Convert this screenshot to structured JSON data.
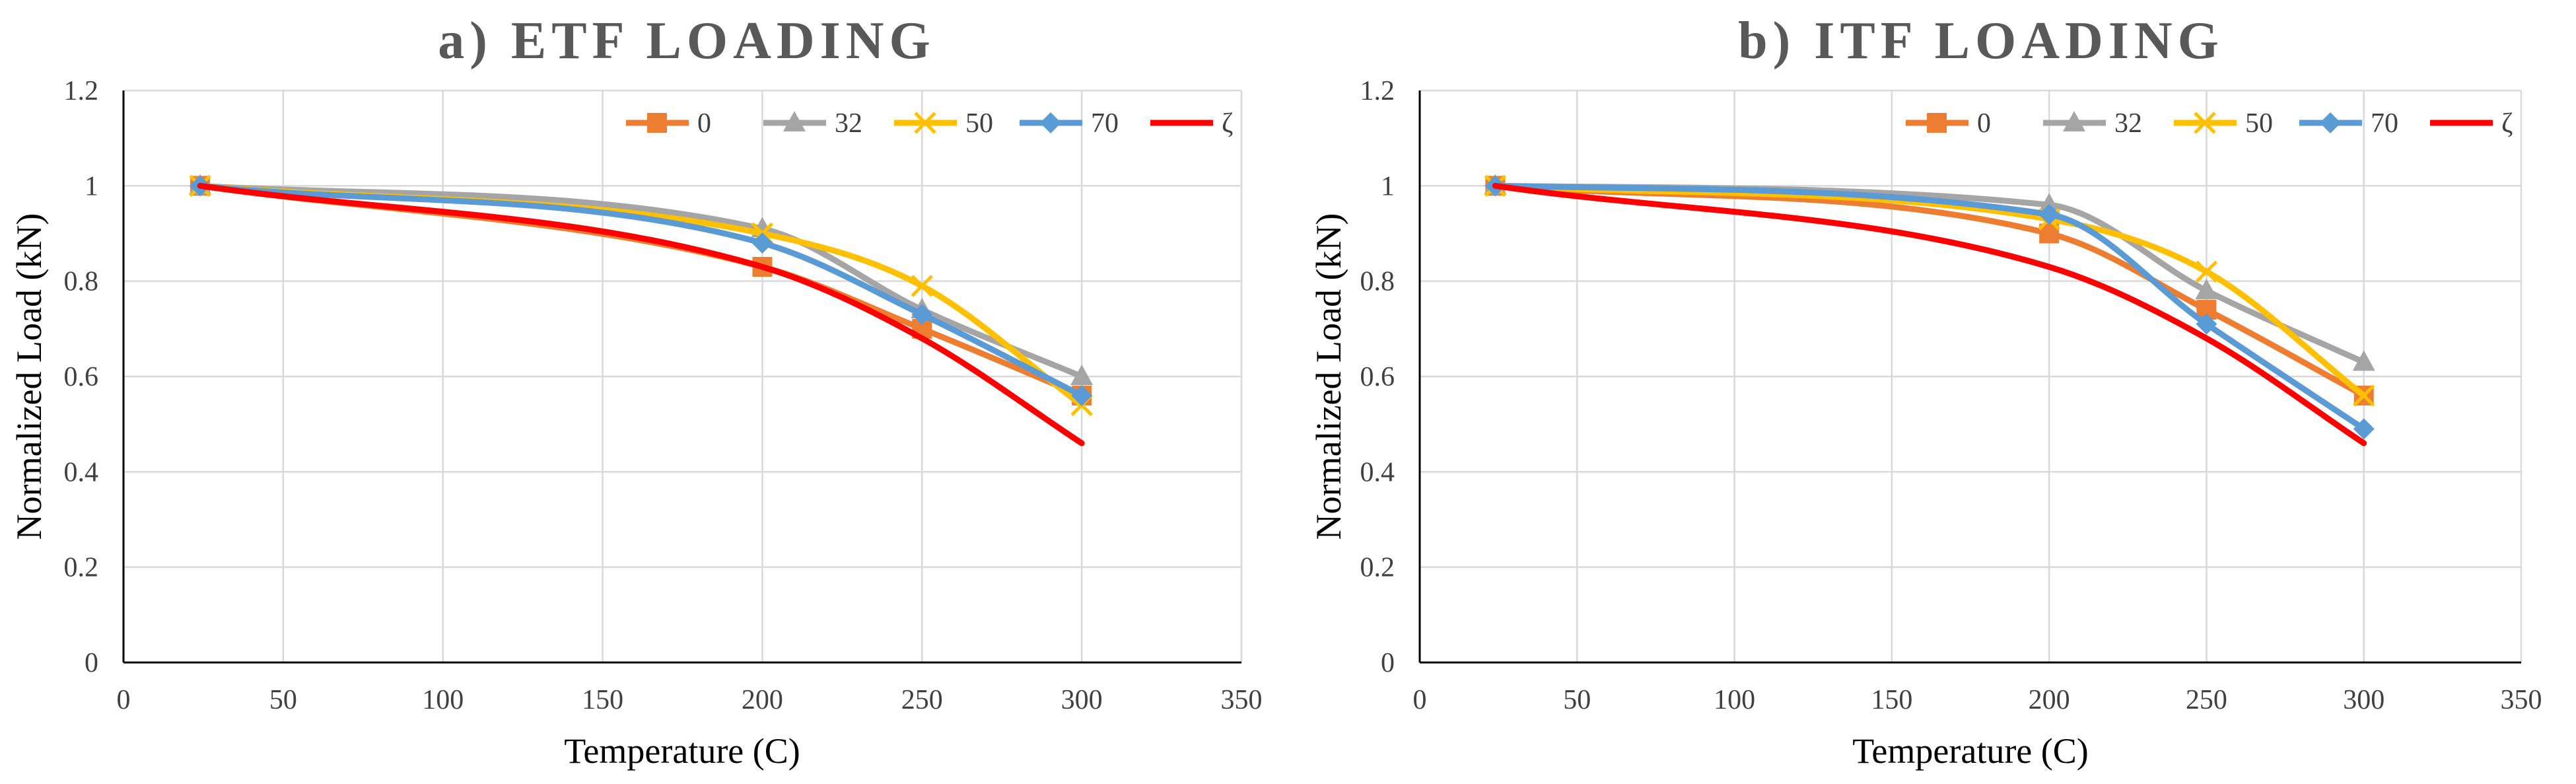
{
  "chart_data": [
    {
      "type": "line",
      "title": "a) ETF LOADING",
      "xlabel": "Temperature (C)",
      "ylabel": "Normalized Load (kN)",
      "xlim": [
        0,
        350
      ],
      "ylim": [
        0,
        1.2
      ],
      "x_ticks": [
        "0",
        "50",
        "100",
        "150",
        "200",
        "250",
        "300",
        "350"
      ],
      "y_ticks": [
        "0",
        "0.2",
        "0.4",
        "0.6",
        "0.8",
        "1",
        "1.2"
      ],
      "grid": true,
      "legend_position": "top-right",
      "x": [
        24,
        200,
        250,
        300
      ],
      "series": [
        {
          "name": "0",
          "color": "#ED7D31",
          "marker": "square",
          "values": [
            1.0,
            0.83,
            0.7,
            0.56
          ]
        },
        {
          "name": "32",
          "color": "#A5A5A5",
          "marker": "triangle",
          "values": [
            1.0,
            0.91,
            0.74,
            0.6
          ]
        },
        {
          "name": "50",
          "color": "#FFC000",
          "marker": "x",
          "values": [
            1.0,
            0.9,
            0.79,
            0.54
          ]
        },
        {
          "name": "70",
          "color": "#5B9BD5",
          "marker": "diamond",
          "values": [
            1.0,
            0.88,
            0.73,
            0.56
          ]
        },
        {
          "name": "ζ",
          "color": "#FF0000",
          "marker": "none",
          "values": [
            1.0,
            0.83,
            0.68,
            0.46
          ]
        }
      ]
    },
    {
      "type": "line",
      "title": "b) ITF LOADING",
      "xlabel": "Temperature (C)",
      "ylabel": "Normalized Load (kN)",
      "xlim": [
        0,
        350
      ],
      "ylim": [
        0,
        1.2
      ],
      "x_ticks": [
        "0",
        "50",
        "100",
        "150",
        "200",
        "250",
        "300",
        "350"
      ],
      "y_ticks": [
        "0",
        "0.2",
        "0.4",
        "0.6",
        "0.8",
        "1",
        "1.2"
      ],
      "grid": true,
      "legend_position": "top-right",
      "x": [
        24,
        200,
        250,
        300
      ],
      "series": [
        {
          "name": "0",
          "color": "#ED7D31",
          "marker": "square",
          "values": [
            1.0,
            0.9,
            0.74,
            0.56
          ]
        },
        {
          "name": "32",
          "color": "#A5A5A5",
          "marker": "triangle",
          "values": [
            1.0,
            0.96,
            0.78,
            0.63
          ]
        },
        {
          "name": "50",
          "color": "#FFC000",
          "marker": "x",
          "values": [
            1.0,
            0.93,
            0.82,
            0.56
          ]
        },
        {
          "name": "70",
          "color": "#5B9BD5",
          "marker": "diamond",
          "values": [
            1.0,
            0.94,
            0.71,
            0.49
          ]
        },
        {
          "name": "ζ",
          "color": "#FF0000",
          "marker": "none",
          "values": [
            1.0,
            0.83,
            0.68,
            0.46
          ]
        }
      ]
    }
  ]
}
